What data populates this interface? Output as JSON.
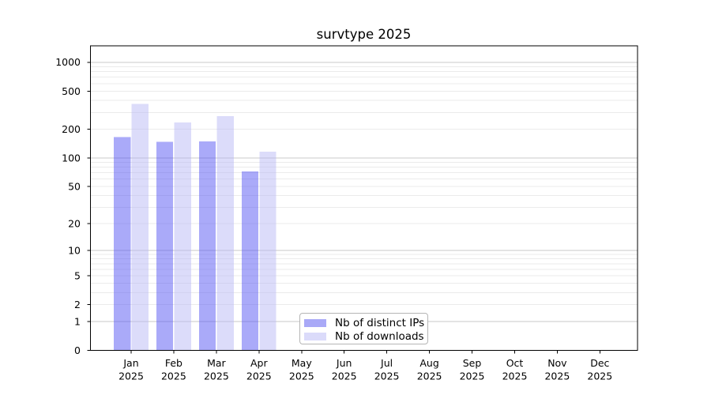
{
  "chart_data": {
    "type": "bar",
    "title": "survtype 2025",
    "categories": [
      "Jan",
      "Feb",
      "Mar",
      "Apr",
      "May",
      "Jun",
      "Jul",
      "Aug",
      "Sep",
      "Oct",
      "Nov",
      "Dec"
    ],
    "category_year": "2025",
    "series": [
      {
        "name": "Nb of distinct IPs",
        "color": "#a9a9f7",
        "fill": "rgba(85,85,243,0.5)",
        "values": [
          165,
          148,
          149,
          72,
          0,
          0,
          0,
          0,
          0,
          0,
          0,
          0
        ]
      },
      {
        "name": "Nb of downloads",
        "color": "#dbdbfa",
        "fill": "rgba(185,185,246,0.5)",
        "values": [
          370,
          235,
          275,
          117,
          0,
          0,
          0,
          0,
          0,
          0,
          0,
          0
        ]
      }
    ],
    "y_ticks": [
      0,
      1,
      2,
      5,
      10,
      20,
      50,
      100,
      200,
      500,
      1000
    ],
    "y_scale": "log1p",
    "ylim": [
      0,
      1450
    ],
    "grid": "horizontal-minor-log",
    "legend_position": "inside-lower-middle",
    "colors": {
      "major_grid": "#c9c9c9",
      "minor_grid": "#ebebeb",
      "axis": "#000000"
    }
  }
}
